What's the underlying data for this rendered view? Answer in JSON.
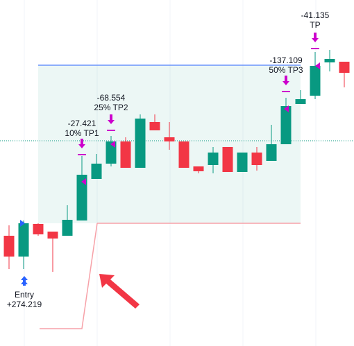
{
  "chart_data": {
    "type": "candlestick",
    "ylim": [
      0,
      499
    ],
    "open": [
      159,
      129,
      176,
      165,
      159,
      181,
      241,
      263,
      295,
      257,
      323,
      301,
      295,
      259,
      261,
      287,
      251,
      279,
      267,
      291,
      349,
      361,
      409,
      410
    ],
    "high": [
      174,
      181,
      177,
      165,
      203,
      274,
      277,
      303,
      301,
      334,
      334,
      323,
      295,
      259,
      287,
      287,
      279,
      287,
      319,
      358,
      369,
      424,
      427,
      410
    ],
    "low": [
      111,
      111,
      159,
      107,
      159,
      181,
      241,
      259,
      257,
      257,
      311,
      283,
      257,
      249,
      249,
      251,
      251,
      253,
      267,
      291,
      349,
      356,
      396,
      373
    ],
    "close": [
      129,
      177,
      161,
      155,
      182,
      247,
      263,
      295,
      257,
      328,
      311,
      295,
      257,
      252,
      279,
      251,
      279,
      261,
      291,
      346,
      356,
      404,
      414,
      394
    ],
    "up_color": "#089981",
    "down_color": "#f23645",
    "target": 405,
    "stop": 177,
    "price_line": 296,
    "initial_stop": 25,
    "annotations": [
      {
        "text": "Entry",
        "pnl": {
          "value": 274.219,
          "label": "+274.219"
        }
      },
      {
        "text": "10% TP1",
        "pnl": -27.421
      },
      {
        "text": "25% TP2",
        "pnl": -68.554
      },
      {
        "text": "50% TP3",
        "pnl": -137.109
      },
      {
        "text": "TP",
        "pnl": -41.135
      }
    ]
  }
}
